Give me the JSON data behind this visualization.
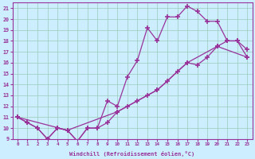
{
  "bg_color": "#cceeff",
  "line_color": "#993399",
  "grid_color": "#99ccbb",
  "xlabel": "Windchill (Refroidissement éolien,°C)",
  "xmin": 0,
  "xmax": 23,
  "ymin": 9,
  "ymax": 21,
  "curve1_x": [
    0,
    1,
    2,
    3,
    4,
    5,
    6,
    7,
    8,
    9,
    10,
    11,
    12,
    13,
    14,
    15,
    16,
    17,
    18,
    19,
    20,
    21,
    22,
    23
  ],
  "curve1_y": [
    11,
    10.5,
    10,
    9,
    10,
    9.8,
    8.8,
    10,
    10,
    12.5,
    12,
    14.7,
    16.2,
    19.2,
    18.0,
    20.2,
    20.2,
    21.2,
    20.7,
    19.8,
    19.8,
    18.0,
    18.0,
    17.2
  ],
  "curve2_x": [
    0,
    1,
    2,
    3,
    4,
    5,
    6,
    7,
    8,
    9,
    10,
    11,
    12,
    13,
    14,
    15,
    16,
    17,
    18,
    19,
    20,
    21,
    22,
    23
  ],
  "curve2_y": [
    11,
    10.5,
    10,
    9,
    10,
    9.8,
    8.8,
    10,
    10,
    10.5,
    11.5,
    12,
    12.5,
    13.0,
    13.5,
    14.3,
    15.2,
    16.0,
    15.8,
    16.5,
    17.5,
    18.0,
    18.0,
    16.5
  ],
  "curve3_x": [
    0,
    5,
    10,
    14,
    17,
    20,
    23
  ],
  "curve3_y": [
    11,
    9.8,
    11.5,
    13.5,
    16.0,
    17.5,
    16.5
  ]
}
